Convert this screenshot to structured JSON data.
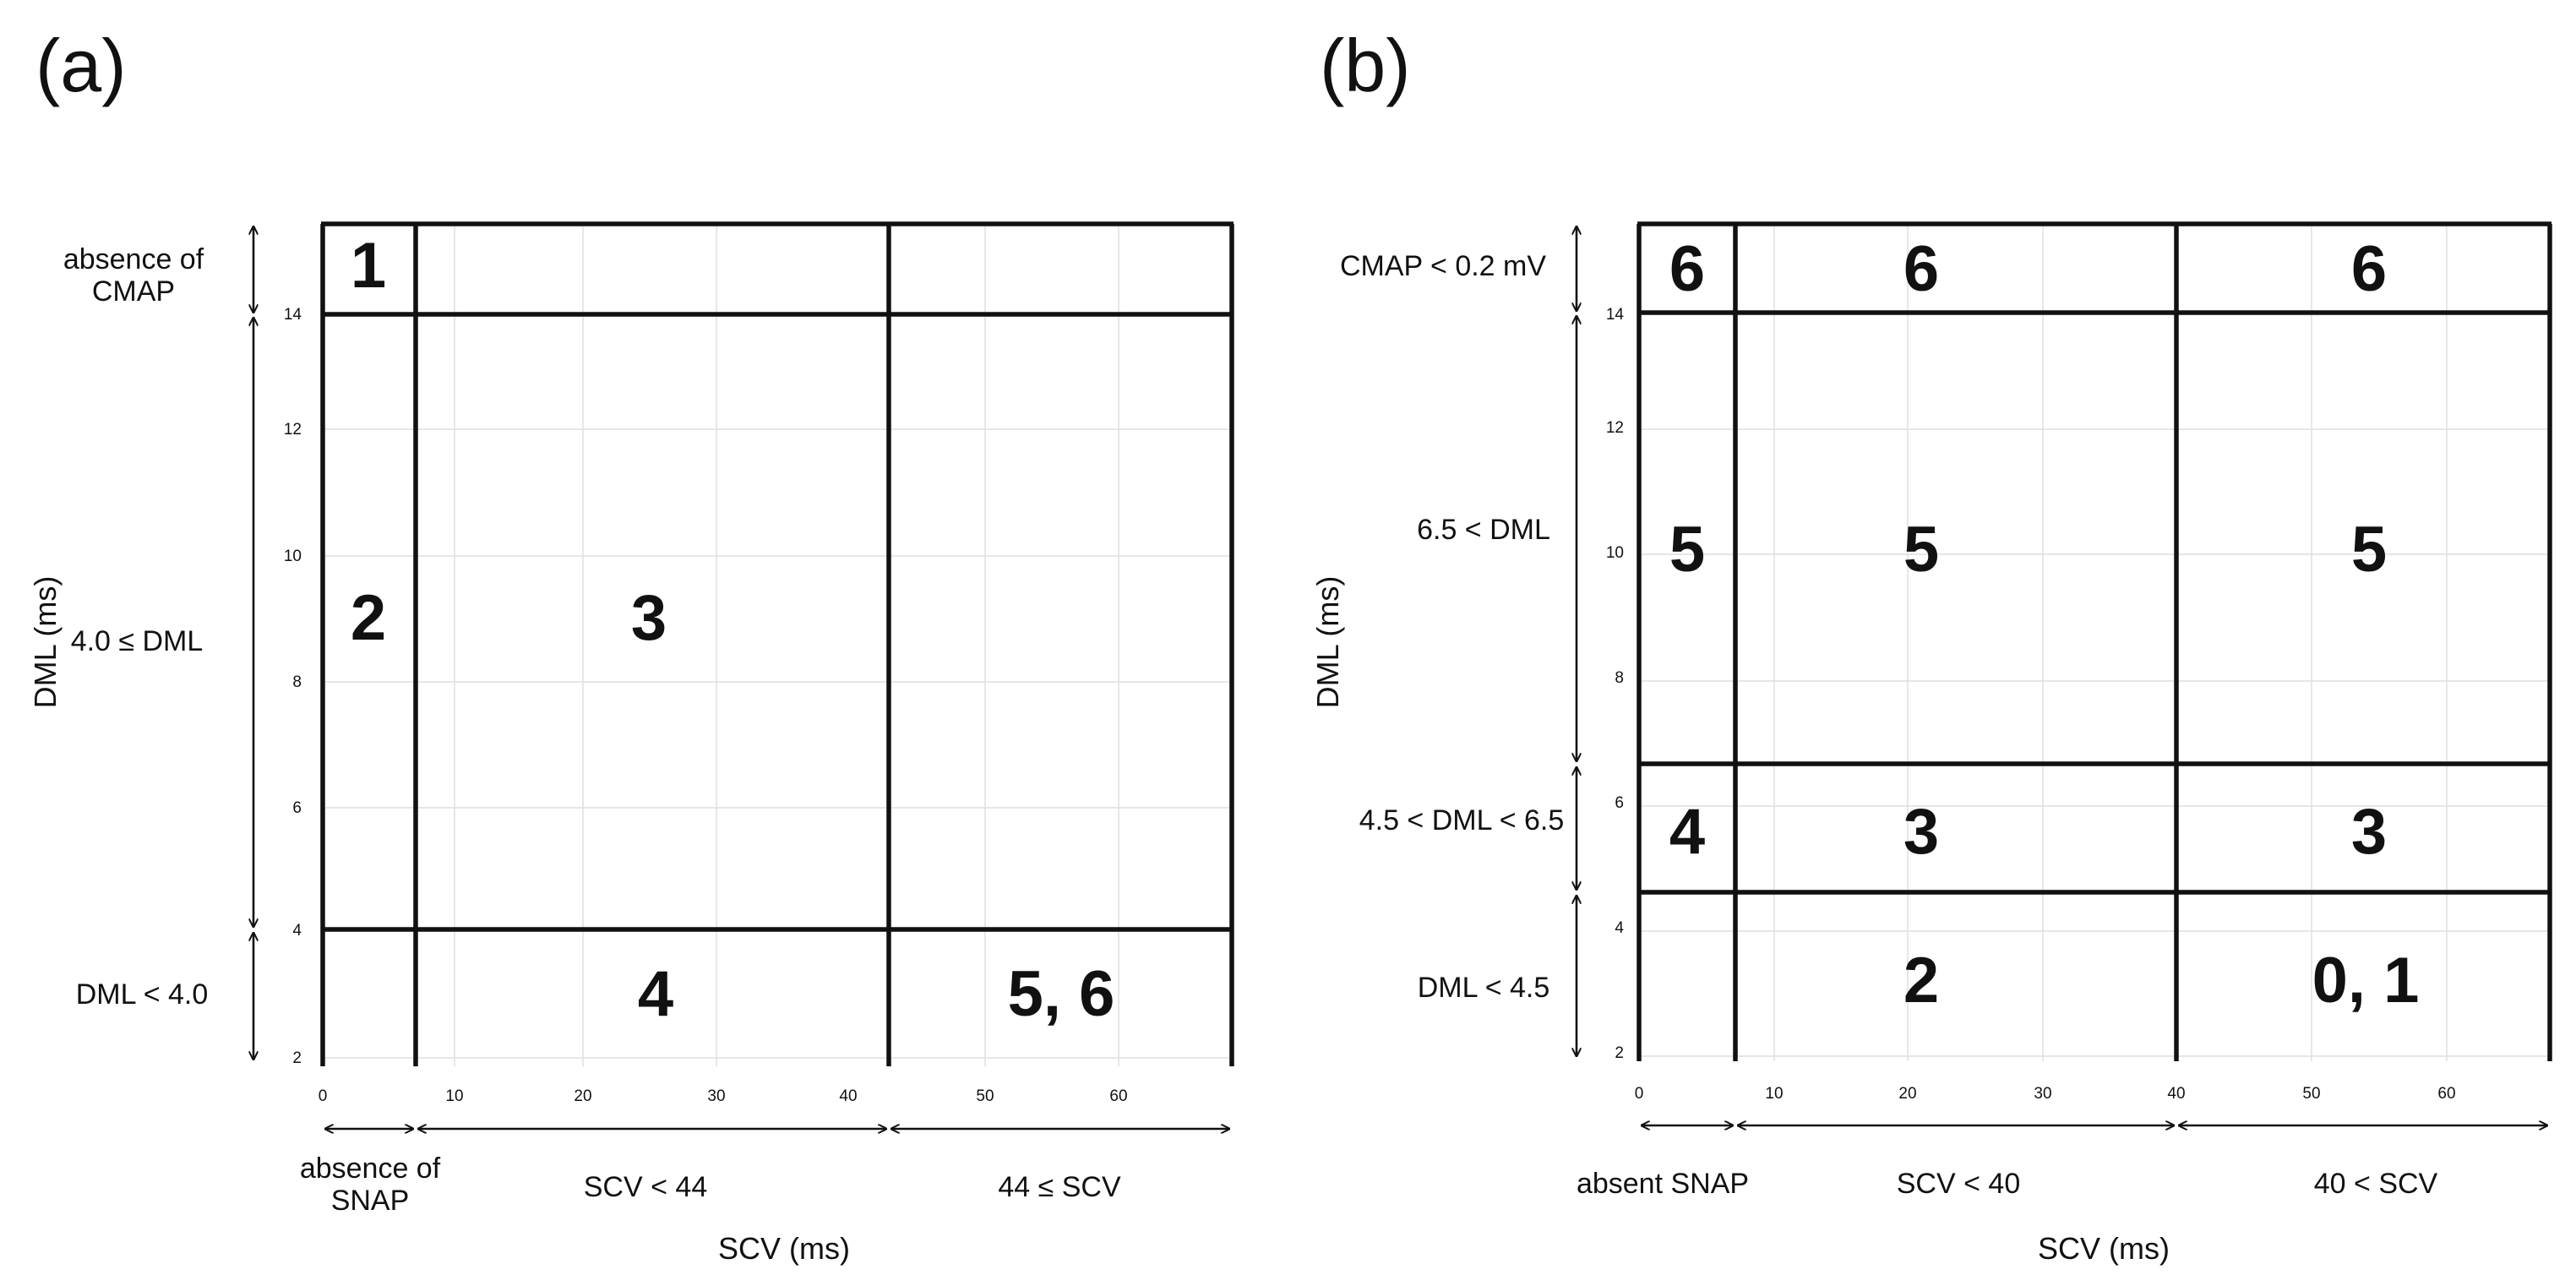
{
  "panels": [
    {
      "label": "(a)",
      "x_axis_title": "SCV (ms)",
      "y_axis_title": "DML (ms)",
      "x_ticks": [
        "0",
        "10",
        "20",
        "30",
        "40",
        "50",
        "60"
      ],
      "y_ticks": [
        "2",
        "4",
        "6",
        "8",
        "10",
        "12",
        "14"
      ],
      "row_labels": [
        "absence of CMAP",
        "4.0 ≤ DML",
        "DML < 4.0"
      ],
      "col_labels": [
        "absence of SNAP",
        "SCV < 44",
        "44 ≤ SCV"
      ],
      "cells": {
        "c1": "1",
        "c2": "2",
        "c3": "3",
        "c4": "4",
        "c56": "5, 6"
      }
    },
    {
      "label": "(b)",
      "x_axis_title": "SCV (ms)",
      "y_axis_title": "DML (ms)",
      "x_ticks": [
        "0",
        "10",
        "20",
        "30",
        "40",
        "50",
        "60"
      ],
      "y_ticks": [
        "2",
        "4",
        "6",
        "8",
        "10",
        "12",
        "14"
      ],
      "row_labels": [
        "CMAP < 0.2 mV",
        "6.5 < DML",
        "4.5 < DML < 6.5",
        "DML < 4.5"
      ],
      "col_labels": [
        "absent SNAP",
        "SCV < 40",
        "40 < SCV"
      ],
      "cells": {
        "r1c1": "6",
        "r1c2": "6",
        "r1c3": "6",
        "r2c1": "5",
        "r2c2": "5",
        "r2c3": "5",
        "r3c1": "4",
        "r3c2": "3",
        "r3c3": "3",
        "r4c2": "2",
        "r4c3": "0, 1"
      }
    }
  ]
}
